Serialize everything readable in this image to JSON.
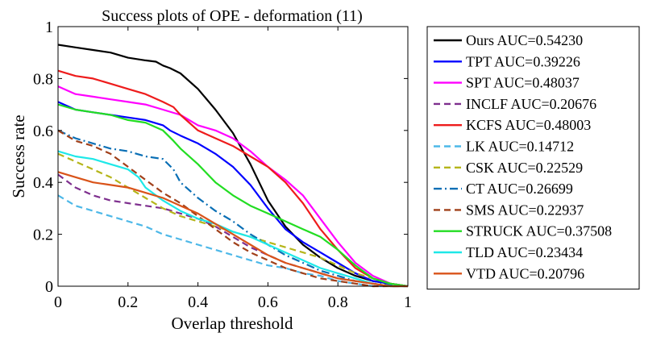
{
  "chart_data": {
    "type": "line",
    "title": "Success plots of OPE - deformation (11)",
    "xlabel": "Overlap threshold",
    "ylabel": "Success rate",
    "xlim": [
      0,
      1
    ],
    "ylim": [
      0,
      1
    ],
    "xticks": [
      "0",
      "0.2",
      "0.4",
      "0.6",
      "0.8",
      "1"
    ],
    "yticks": [
      "0",
      "0.2",
      "0.4",
      "0.6",
      "0.8",
      "1"
    ],
    "legend_position": "outside-right",
    "series": [
      {
        "name": "Ours",
        "label": "Ours AUC=0.54230",
        "color": "#000000",
        "dash": "solid",
        "x": [
          0,
          0.05,
          0.1,
          0.15,
          0.2,
          0.25,
          0.28,
          0.3,
          0.32,
          0.35,
          0.4,
          0.45,
          0.5,
          0.55,
          0.6,
          0.65,
          0.7,
          0.75,
          0.8,
          0.85,
          0.9,
          0.95,
          1
        ],
        "y": [
          0.93,
          0.92,
          0.91,
          0.9,
          0.88,
          0.87,
          0.865,
          0.85,
          0.84,
          0.82,
          0.76,
          0.68,
          0.59,
          0.47,
          0.33,
          0.23,
          0.16,
          0.11,
          0.07,
          0.04,
          0.02,
          0.01,
          0.0
        ]
      },
      {
        "name": "TPT",
        "label": "TPT AUC=0.39226",
        "color": "#0000ff",
        "dash": "solid",
        "x": [
          0,
          0.05,
          0.1,
          0.15,
          0.2,
          0.25,
          0.3,
          0.32,
          0.35,
          0.4,
          0.45,
          0.5,
          0.55,
          0.6,
          0.65,
          0.7,
          0.75,
          0.8,
          0.85,
          0.9,
          0.95,
          1
        ],
        "y": [
          0.71,
          0.68,
          0.67,
          0.66,
          0.65,
          0.64,
          0.62,
          0.6,
          0.58,
          0.55,
          0.51,
          0.46,
          0.39,
          0.3,
          0.22,
          0.17,
          0.13,
          0.09,
          0.05,
          0.02,
          0.01,
          0.0
        ]
      },
      {
        "name": "SPT",
        "label": "SPT AUC=0.48037",
        "color": "#ff00ff",
        "dash": "solid",
        "x": [
          0,
          0.05,
          0.1,
          0.15,
          0.2,
          0.25,
          0.3,
          0.35,
          0.4,
          0.45,
          0.5,
          0.55,
          0.6,
          0.65,
          0.7,
          0.75,
          0.8,
          0.85,
          0.9,
          0.95,
          1
        ],
        "y": [
          0.77,
          0.74,
          0.73,
          0.72,
          0.71,
          0.7,
          0.68,
          0.66,
          0.62,
          0.6,
          0.57,
          0.52,
          0.46,
          0.41,
          0.35,
          0.26,
          0.17,
          0.09,
          0.04,
          0.01,
          0.0
        ]
      },
      {
        "name": "INCLF",
        "label": "INCLF AUC=0.20676",
        "color": "#7e2f8e",
        "dash": "8,5",
        "x": [
          0,
          0.05,
          0.1,
          0.15,
          0.2,
          0.25,
          0.3,
          0.35,
          0.4,
          0.45,
          0.5,
          0.55,
          0.6,
          0.65,
          0.7,
          0.75,
          0.8,
          0.85,
          0.9,
          0.95,
          1
        ],
        "y": [
          0.43,
          0.38,
          0.35,
          0.33,
          0.32,
          0.31,
          0.3,
          0.28,
          0.26,
          0.23,
          0.19,
          0.15,
          0.12,
          0.09,
          0.07,
          0.05,
          0.03,
          0.02,
          0.01,
          0.0,
          0.0
        ]
      },
      {
        "name": "KCFS",
        "label": "KCFS AUC=0.48003",
        "color": "#ee1c1c",
        "dash": "solid",
        "x": [
          0,
          0.05,
          0.1,
          0.15,
          0.2,
          0.25,
          0.3,
          0.33,
          0.35,
          0.4,
          0.45,
          0.5,
          0.55,
          0.6,
          0.65,
          0.7,
          0.75,
          0.8,
          0.85,
          0.9,
          0.95,
          1
        ],
        "y": [
          0.83,
          0.81,
          0.8,
          0.78,
          0.76,
          0.74,
          0.71,
          0.69,
          0.66,
          0.6,
          0.57,
          0.54,
          0.5,
          0.46,
          0.4,
          0.32,
          0.22,
          0.14,
          0.07,
          0.03,
          0.01,
          0.0
        ]
      },
      {
        "name": "LK",
        "label": "LK AUC=0.14712",
        "color": "#4db8e8",
        "dash": "8,5",
        "x": [
          0,
          0.05,
          0.1,
          0.15,
          0.2,
          0.25,
          0.3,
          0.35,
          0.4,
          0.45,
          0.5,
          0.55,
          0.6,
          0.65,
          0.7,
          0.75,
          0.8,
          0.85,
          0.9,
          1
        ],
        "y": [
          0.35,
          0.31,
          0.29,
          0.27,
          0.25,
          0.23,
          0.2,
          0.18,
          0.16,
          0.14,
          0.12,
          0.1,
          0.08,
          0.07,
          0.05,
          0.04,
          0.02,
          0.01,
          0.0,
          0.0
        ]
      },
      {
        "name": "CSK",
        "label": "CSK AUC=0.22529",
        "color": "#b5b51a",
        "dash": "8,5",
        "x": [
          0,
          0.05,
          0.1,
          0.15,
          0.2,
          0.25,
          0.3,
          0.35,
          0.4,
          0.45,
          0.5,
          0.55,
          0.6,
          0.65,
          0.7,
          0.75,
          0.8,
          0.85,
          0.9,
          0.95,
          1
        ],
        "y": [
          0.51,
          0.48,
          0.45,
          0.42,
          0.38,
          0.34,
          0.3,
          0.27,
          0.25,
          0.23,
          0.21,
          0.19,
          0.17,
          0.15,
          0.13,
          0.11,
          0.08,
          0.05,
          0.03,
          0.01,
          0.0
        ]
      },
      {
        "name": "CT",
        "label": "CT AUC=0.26699",
        "color": "#0a6fb5",
        "dash": "10,4,2,4",
        "x": [
          0,
          0.05,
          0.1,
          0.15,
          0.2,
          0.25,
          0.3,
          0.33,
          0.35,
          0.4,
          0.45,
          0.5,
          0.55,
          0.6,
          0.65,
          0.7,
          0.75,
          0.8,
          0.85,
          0.9,
          1
        ],
        "y": [
          0.6,
          0.57,
          0.55,
          0.53,
          0.52,
          0.5,
          0.49,
          0.45,
          0.4,
          0.34,
          0.29,
          0.25,
          0.2,
          0.16,
          0.12,
          0.09,
          0.06,
          0.04,
          0.02,
          0.01,
          0.0
        ]
      },
      {
        "name": "SMS",
        "label": "SMS AUC=0.22937",
        "color": "#a0401a",
        "dash": "8,5",
        "x": [
          0,
          0.05,
          0.1,
          0.15,
          0.2,
          0.25,
          0.3,
          0.35,
          0.4,
          0.45,
          0.5,
          0.55,
          0.6,
          0.65,
          0.7,
          0.75,
          0.8,
          0.85,
          0.9,
          1
        ],
        "y": [
          0.6,
          0.56,
          0.54,
          0.51,
          0.46,
          0.41,
          0.36,
          0.32,
          0.27,
          0.22,
          0.17,
          0.13,
          0.1,
          0.07,
          0.05,
          0.03,
          0.02,
          0.01,
          0.0,
          0.0
        ]
      },
      {
        "name": "STRUCK",
        "label": "STRUCK AUC=0.37508",
        "color": "#22dd22",
        "dash": "solid",
        "x": [
          0,
          0.05,
          0.1,
          0.15,
          0.2,
          0.25,
          0.3,
          0.33,
          0.35,
          0.4,
          0.45,
          0.5,
          0.55,
          0.6,
          0.65,
          0.7,
          0.75,
          0.8,
          0.85,
          0.9,
          0.95,
          1
        ],
        "y": [
          0.7,
          0.68,
          0.67,
          0.66,
          0.64,
          0.63,
          0.6,
          0.56,
          0.53,
          0.47,
          0.4,
          0.35,
          0.31,
          0.28,
          0.25,
          0.22,
          0.19,
          0.14,
          0.08,
          0.03,
          0.01,
          0.0
        ]
      },
      {
        "name": "TLD",
        "label": "TLD AUC=0.23434",
        "color": "#1ee8e8",
        "dash": "solid",
        "x": [
          0,
          0.05,
          0.1,
          0.15,
          0.2,
          0.23,
          0.25,
          0.3,
          0.35,
          0.4,
          0.45,
          0.5,
          0.55,
          0.6,
          0.65,
          0.7,
          0.75,
          0.8,
          0.85,
          0.9,
          0.95,
          1
        ],
        "y": [
          0.52,
          0.5,
          0.49,
          0.47,
          0.45,
          0.42,
          0.38,
          0.33,
          0.29,
          0.26,
          0.24,
          0.21,
          0.19,
          0.16,
          0.13,
          0.1,
          0.07,
          0.05,
          0.03,
          0.01,
          0.0,
          0.0
        ]
      },
      {
        "name": "VTD",
        "label": "VTD AUC=0.20796",
        "color": "#d95319",
        "dash": "solid",
        "x": [
          0,
          0.05,
          0.1,
          0.15,
          0.2,
          0.25,
          0.3,
          0.35,
          0.4,
          0.45,
          0.5,
          0.55,
          0.6,
          0.65,
          0.7,
          0.75,
          0.8,
          0.85,
          0.9,
          0.95,
          1
        ],
        "y": [
          0.44,
          0.42,
          0.4,
          0.39,
          0.38,
          0.36,
          0.34,
          0.31,
          0.28,
          0.24,
          0.2,
          0.16,
          0.12,
          0.09,
          0.07,
          0.05,
          0.03,
          0.02,
          0.01,
          0.0,
          0.0
        ]
      }
    ]
  }
}
